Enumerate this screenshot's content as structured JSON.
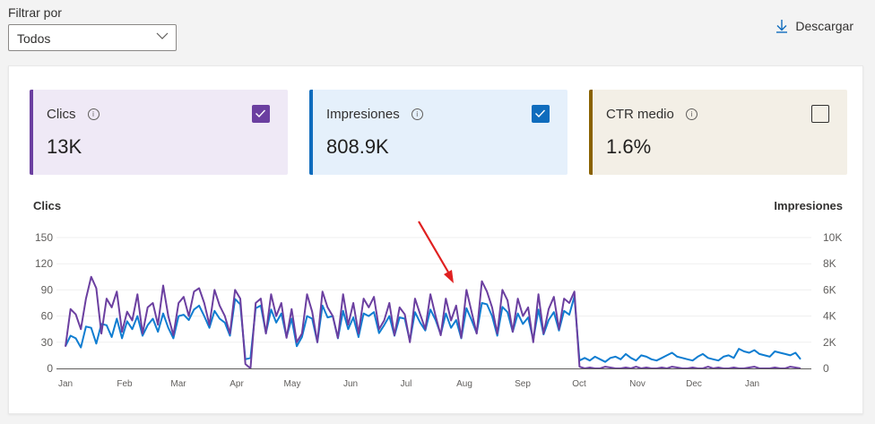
{
  "filter": {
    "label": "Filtrar por",
    "selected": "Todos"
  },
  "toolbar": {
    "download_label": "Descargar",
    "download_icon": "download-icon"
  },
  "cards": [
    {
      "id": "clics",
      "title": "Clics",
      "value": "13K",
      "checked": true,
      "accent": "#6b3fa0",
      "bg": "#efe9f6"
    },
    {
      "id": "impresiones",
      "title": "Impresiones",
      "value": "808.9K",
      "checked": true,
      "accent": "#0f6cbd",
      "bg": "#e5f0fb"
    },
    {
      "id": "ctr",
      "title": "CTR medio",
      "value": "1.6%",
      "checked": false,
      "accent": "#8a6200",
      "bg": "#f3efe6"
    }
  ],
  "chart_data": {
    "type": "line",
    "ylabel_left": "Clics",
    "ylabel_right": "Impresiones",
    "y_left_ticks": [
      "0",
      "30",
      "60",
      "90",
      "120",
      "150"
    ],
    "y_left_range": [
      0,
      150
    ],
    "y_right_ticks": [
      "0",
      "2K",
      "4K",
      "6K",
      "8K",
      "10K"
    ],
    "y_right_range": [
      0,
      10000
    ],
    "x_ticks": [
      "Jan",
      "Feb",
      "Mar",
      "Apr",
      "May",
      "Jun",
      "Jul",
      "Aug",
      "Sep",
      "Oct",
      "Nov",
      "Dec",
      "Jan"
    ],
    "grid": true,
    "sample_interval_days": 3,
    "series": [
      {
        "name": "Clics",
        "color": "#6b3fa0",
        "axis": "left",
        "values": [
          25,
          68,
          62,
          45,
          80,
          105,
          92,
          40,
          80,
          70,
          88,
          42,
          65,
          55,
          85,
          40,
          70,
          75,
          50,
          95,
          60,
          38,
          75,
          82,
          60,
          88,
          92,
          75,
          50,
          90,
          72,
          60,
          40,
          90,
          80,
          5,
          0,
          75,
          80,
          40,
          85,
          60,
          75,
          35,
          68,
          30,
          40,
          85,
          65,
          30,
          88,
          70,
          60,
          35,
          85,
          50,
          75,
          40,
          80,
          70,
          82,
          45,
          55,
          75,
          38,
          70,
          62,
          30,
          80,
          62,
          45,
          85,
          60,
          38,
          80,
          55,
          72,
          35,
          90,
          65,
          40,
          100,
          88,
          70,
          40,
          90,
          78,
          42,
          80,
          60,
          70,
          30,
          85,
          40,
          68,
          82,
          45,
          80,
          75,
          88,
          2,
          0,
          1,
          0,
          0,
          2,
          1,
          0,
          0,
          1,
          0,
          2,
          0,
          1,
          0,
          0,
          1,
          0,
          2,
          1,
          0,
          0,
          1,
          0,
          0,
          2,
          0,
          1,
          0,
          0,
          1,
          0,
          0,
          1,
          2,
          0,
          0,
          0,
          1,
          0,
          0,
          2,
          1,
          0
        ]
      },
      {
        "name": "Impresiones",
        "color": "#0f7dd1",
        "axis": "right",
        "values": [
          1700,
          2500,
          2300,
          1600,
          3200,
          3100,
          1900,
          3400,
          3300,
          2400,
          3800,
          2300,
          3600,
          3000,
          4000,
          2500,
          3300,
          3800,
          2800,
          4200,
          3100,
          2300,
          4000,
          4100,
          3700,
          4500,
          4800,
          4000,
          3100,
          4400,
          3800,
          3500,
          2500,
          5300,
          4900,
          700,
          800,
          4600,
          4800,
          2700,
          4500,
          3500,
          4200,
          2400,
          3800,
          1700,
          2400,
          4000,
          3800,
          2000,
          4800,
          3900,
          4000,
          2300,
          4400,
          3000,
          3900,
          2400,
          4200,
          4000,
          4300,
          2700,
          3300,
          4000,
          2500,
          3900,
          3800,
          2100,
          4300,
          3500,
          2900,
          4500,
          3700,
          2600,
          4200,
          3100,
          3700,
          2300,
          4600,
          3700,
          2700,
          5000,
          4900,
          4000,
          2500,
          4700,
          4300,
          2800,
          4200,
          3400,
          3900,
          2200,
          4500,
          2600,
          3700,
          4300,
          2900,
          4400,
          4100,
          5500,
          600,
          800,
          600,
          900,
          700,
          500,
          800,
          900,
          700,
          1100,
          800,
          600,
          1000,
          900,
          700,
          600,
          800,
          1000,
          1200,
          900,
          800,
          700,
          600,
          900,
          1100,
          800,
          700,
          600,
          900,
          1000,
          800,
          1500,
          1300,
          1200,
          1400,
          1100,
          1000,
          900,
          1300,
          1200,
          1100,
          1000,
          1200,
          700
        ]
      }
    ],
    "annotation": {
      "type": "arrow",
      "color": "#e02020"
    }
  }
}
